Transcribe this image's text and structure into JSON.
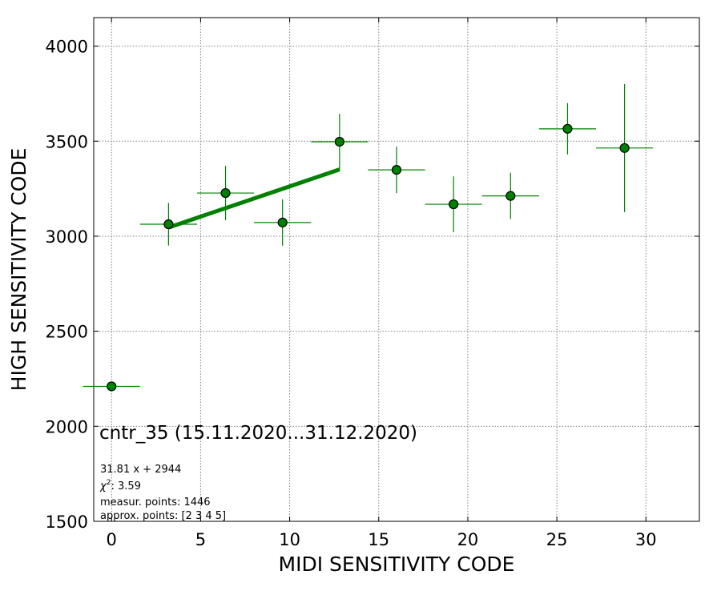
{
  "chart_data": {
    "type": "scatter",
    "xlabel": "MIDI SENSITIVITY CODE",
    "ylabel": "HIGH SENSITIVITY CODE",
    "xlim": [
      -1,
      33
    ],
    "ylim": [
      1500,
      4150
    ],
    "x_ticks": [
      0,
      5,
      10,
      15,
      20,
      25,
      30
    ],
    "y_ticks": [
      1500,
      2000,
      2500,
      3000,
      3500,
      4000
    ],
    "grid": true,
    "colors": {
      "marker": "#008000",
      "marker_edge": "#000000",
      "fit_line": "#008000"
    },
    "points": [
      {
        "x": 0.0,
        "y": 2210,
        "xerr": 1.6,
        "yerr": 0
      },
      {
        "x": 3.2,
        "y": 3063,
        "xerr": 1.6,
        "yerr": 112
      },
      {
        "x": 6.4,
        "y": 3227,
        "xerr": 1.6,
        "yerr": 143
      },
      {
        "x": 9.6,
        "y": 3072,
        "xerr": 1.6,
        "yerr": 122
      },
      {
        "x": 12.8,
        "y": 3497,
        "xerr": 1.6,
        "yerr": 147
      },
      {
        "x": 16.0,
        "y": 3349,
        "xerr": 1.6,
        "yerr": 122
      },
      {
        "x": 19.2,
        "y": 3168,
        "xerr": 1.6,
        "yerr": 147
      },
      {
        "x": 22.4,
        "y": 3212,
        "xerr": 1.6,
        "yerr": 122
      },
      {
        "x": 25.6,
        "y": 3565,
        "xerr": 1.6,
        "yerr": 135
      },
      {
        "x": 28.8,
        "y": 3464,
        "xerr": 1.6,
        "yerr": 337
      }
    ],
    "fit": {
      "slope": 31.81,
      "intercept": 2944,
      "x_range": [
        3.2,
        12.8
      ]
    },
    "annotations": {
      "title": "cntr_35 (15.11.2020...31.12.2020)",
      "equation": "31.81 x + 2944",
      "chi2_label": "χ",
      "chi2_sup": "2",
      "chi2_value": ": 3.59",
      "measur_points": "measur. points: 1446",
      "approx_points": "approx. points: [2 3 4 5]"
    }
  }
}
